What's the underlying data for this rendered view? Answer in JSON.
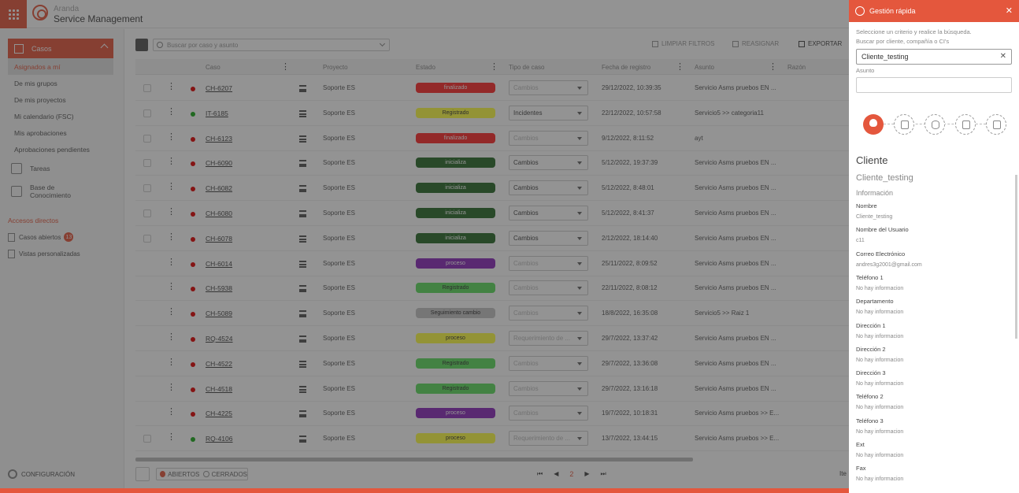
{
  "brand": {
    "line1": "Aranda",
    "line2": "Service Management"
  },
  "sidebar": {
    "section": "Casos",
    "items": [
      "Asignados a mí",
      "De mis grupos",
      "De mis proyectos",
      "Mi calendario (FSC)",
      "Mis aprobaciones",
      "Aprobaciones pendientes"
    ],
    "tareas": "Tareas",
    "kb": [
      "Base de",
      "Conocimiento"
    ],
    "accesos_title": "Accesos directos",
    "accesos": [
      {
        "label": "Casos abiertos",
        "badge": "13"
      },
      {
        "label": "Vistas personalizadas"
      }
    ],
    "config": "CONFIGURACIÓN"
  },
  "toolbar": {
    "search_placeholder": "Buscar por caso y asunto",
    "limpiar": "LIMPIAR FILTROS",
    "reasignar": "REASIGNAR",
    "exportar": "EXPORTAR"
  },
  "columns": [
    "Caso",
    "Proyecto",
    "Estado",
    "Tipo de caso",
    "Fecha de registro",
    "Asunto",
    "Razón"
  ],
  "rows": [
    {
      "case": "CH-6207",
      "proj": "Soporte ES",
      "status": "finalizado",
      "status_color": "#ff2a2a",
      "tipo": "Cambios",
      "tipo_enabled": false,
      "date": "29/12/2022, 10:39:35",
      "asunto": "Servicio Asms pruebos EN ...",
      "dot": "#e00000",
      "cb": true
    },
    {
      "case": "IT-6185",
      "proj": "Soporte ES",
      "status": "Registrado",
      "status_color": "#ffff44",
      "tipo": "Incidentes",
      "tipo_enabled": true,
      "date": "22/12/2022, 10:57:58",
      "asunto": "Servicio5 >> categoria11",
      "dot": "#1aaa1a",
      "cb": true
    },
    {
      "case": "CH-6123",
      "proj": "Soporte ES",
      "status": "finalizado",
      "status_color": "#ff2a2a",
      "tipo": "Cambios",
      "tipo_enabled": false,
      "date": "9/12/2022, 8:11:52",
      "asunto": "ayt",
      "dot": "#e00000",
      "cb": true
    },
    {
      "case": "CH-6090",
      "proj": "Soporte ES",
      "status": "inicializa",
      "status_color": "#2b6a2b",
      "tipo": "Cambios",
      "tipo_enabled": true,
      "date": "5/12/2022, 19:37:39",
      "asunto": "Servicio Asms pruebos EN ...",
      "dot": "#e00000",
      "cb": true
    },
    {
      "case": "CH-6082",
      "proj": "Soporte ES",
      "status": "inicializa",
      "status_color": "#2b6a2b",
      "tipo": "Cambios",
      "tipo_enabled": true,
      "date": "5/12/2022, 8:48:01",
      "asunto": "Servicio Asms pruebos EN ...",
      "dot": "#e00000",
      "cb": true
    },
    {
      "case": "CH-6080",
      "proj": "Soporte ES",
      "status": "inicializa",
      "status_color": "#2b6a2b",
      "tipo": "Cambios",
      "tipo_enabled": true,
      "date": "5/12/2022, 8:41:37",
      "asunto": "Servicio Asms pruebos EN ...",
      "dot": "#e00000",
      "cb": true
    },
    {
      "case": "CH-6078",
      "proj": "Soporte ES",
      "status": "inicializa",
      "status_color": "#2b6a2b",
      "tipo": "Cambios",
      "tipo_enabled": true,
      "date": "2/12/2022, 18:14:40",
      "asunto": "Servicio Asms pruebos EN ...",
      "dot": "#e00000",
      "cb": true
    },
    {
      "case": "CH-6014",
      "proj": "Soporte ES",
      "status": "proceso",
      "status_color": "#8b2aba",
      "tipo": "Cambios",
      "tipo_enabled": false,
      "date": "25/11/2022, 8:09:52",
      "asunto": "Servicio Asms pruebos EN ...",
      "dot": "#e00000",
      "cb": false
    },
    {
      "case": "CH-5938",
      "proj": "Soporte ES",
      "status": "Registrado",
      "status_color": "#5fdc5f",
      "tipo": "Cambios",
      "tipo_enabled": false,
      "date": "22/11/2022, 8:08:12",
      "asunto": "Servicio Asms pruebos EN ...",
      "dot": "#e00000",
      "cb": false
    },
    {
      "case": "CH-5089",
      "proj": "Soporte ES",
      "status": "Seguimiento cambio",
      "status_color": "#c4c4c4",
      "tipo": "Cambios",
      "tipo_enabled": false,
      "date": "18/8/2022, 16:35:08",
      "asunto": "Servicio5 >> Raiz 1",
      "dot": "#e00000",
      "cb": false
    },
    {
      "case": "RQ-4524",
      "proj": "Soporte ES",
      "status": "proceso",
      "status_color": "#ffff44",
      "tipo": "Requerimiento de ...",
      "tipo_enabled": false,
      "date": "29/7/2022, 13:37:42",
      "asunto": "Servicio Asms pruebos EN ...",
      "dot": "#e00000",
      "cb": false
    },
    {
      "case": "CH-4522",
      "proj": "Soporte ES",
      "status": "Registrado",
      "status_color": "#5fdc5f",
      "tipo": "Cambios",
      "tipo_enabled": false,
      "date": "29/7/2022, 13:36:08",
      "asunto": "Servicio Asms pruebos EN ...",
      "dot": "#e00000",
      "cb": false
    },
    {
      "case": "CH-4518",
      "proj": "Soporte ES",
      "status": "Registrado",
      "status_color": "#5fdc5f",
      "tipo": "Cambios",
      "tipo_enabled": false,
      "date": "29/7/2022, 13:16:18",
      "asunto": "Servicio Asms pruebos EN ...",
      "dot": "#e00000",
      "cb": false
    },
    {
      "case": "CH-4225",
      "proj": "Soporte ES",
      "status": "proceso",
      "status_color": "#8b2aba",
      "tipo": "Cambios",
      "tipo_enabled": false,
      "date": "19/7/2022, 10:18:31",
      "asunto": "Servicio Asms pruebos >> E...",
      "dot": "#e00000",
      "cb": false
    },
    {
      "case": "RQ-4106",
      "proj": "Soporte ES",
      "status": "proceso",
      "status_color": "#ffff44",
      "tipo": "Requerimiento de ...",
      "tipo_enabled": false,
      "date": "13/7/2022, 13:44:15",
      "asunto": "Servicio Asms pruebos >> E...",
      "dot": "#1aaa1a",
      "cb": true
    }
  ],
  "footer": {
    "abiertos": "ABIERTOS",
    "cerrados": "CERRADOS",
    "page": "2",
    "items": "Ite"
  },
  "panel": {
    "title": "Gestión rápida",
    "info1": "Seleccione un criterio y realice la búsqueda.",
    "info2": "Buscar por cliente, compañía o CI's",
    "client_value": "Cliente_testing",
    "asunto_label": "Asunto",
    "section_title": "Cliente",
    "client_name": "Cliente_testing",
    "info_title": "Información",
    "fields": [
      {
        "label": "Nombre",
        "value": "Cliente_testing"
      },
      {
        "label": "Nombre del Usuario",
        "value": "c11"
      },
      {
        "label": "Correo Electrónico",
        "value": "andres3g2001@gmail.com"
      },
      {
        "label": "Teléfono 1",
        "value": "No hay informacion"
      },
      {
        "label": "Departamento",
        "value": "No hay informacion"
      },
      {
        "label": "Dirección 1",
        "value": "No hay informacion"
      },
      {
        "label": "Dirección 2",
        "value": "No hay informacion"
      },
      {
        "label": "Dirección 3",
        "value": "No hay informacion"
      },
      {
        "label": "Teléfono 2",
        "value": "No hay informacion"
      },
      {
        "label": "Teléfono 3",
        "value": "No hay informacion"
      },
      {
        "label": "Ext",
        "value": "No hay informacion"
      },
      {
        "label": "Fax",
        "value": "No hay informacion"
      }
    ]
  },
  "colors": {
    "accent": "#e4573d"
  }
}
